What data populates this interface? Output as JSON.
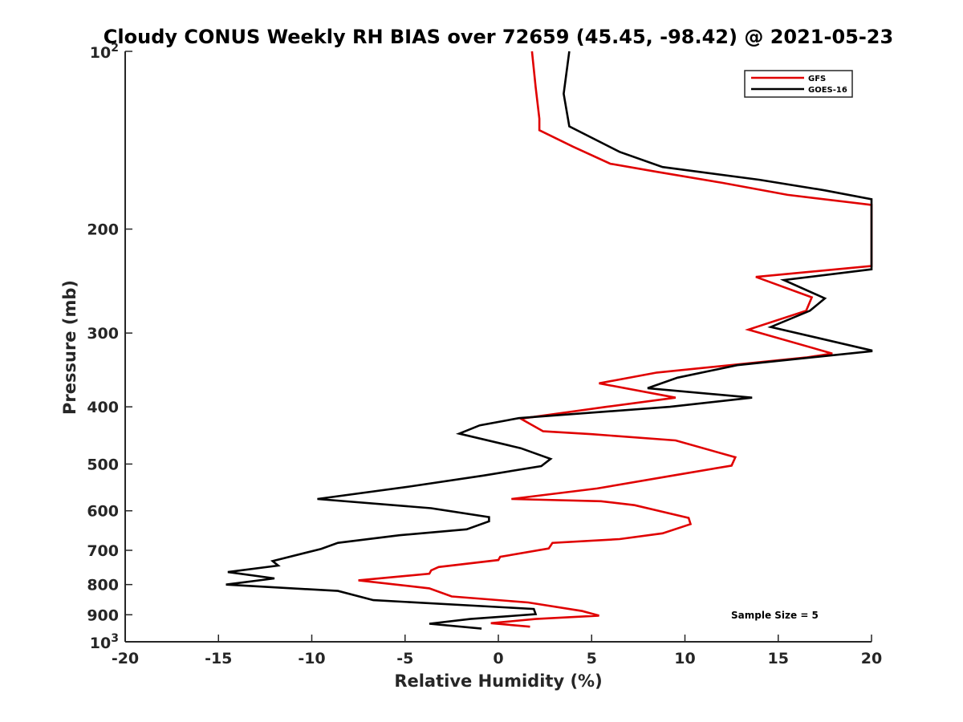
{
  "chart_data": {
    "type": "line",
    "title": "Cloudy CONUS Weekly RH BIAS over 72659 (45.45, -98.42) @ 2021-05-23",
    "xlabel": "Relative Humidity (%)",
    "ylabel": "Pressure (mb)",
    "xlim": [
      -20,
      20
    ],
    "ylim": [
      100,
      1000
    ],
    "y_scale": "log",
    "y_reversed": true,
    "x_ticks": [
      "-20",
      "-15",
      "-10",
      "-5",
      "0",
      "5",
      "10",
      "15",
      "20"
    ],
    "x_tick_values": [
      -20,
      -15,
      -10,
      -5,
      0,
      5,
      10,
      15,
      20
    ],
    "y_tick_values": [
      100,
      200,
      300,
      400,
      500,
      600,
      700,
      800,
      900,
      1000
    ],
    "y_ticks_plain": [
      "200",
      "300",
      "400",
      "500",
      "600",
      "700",
      "800",
      "900"
    ],
    "y_ticks_power": [
      {
        "value": 100,
        "base": "10",
        "exp": "2"
      },
      {
        "value": 1000,
        "base": "10",
        "exp": "3"
      }
    ],
    "grid": false,
    "legend_position": "top-right",
    "annotation": "Sample Size = 5",
    "series": [
      {
        "name": "GFS",
        "color": "#e00000",
        "points": [
          [
            1.8,
            100
          ],
          [
            2.0,
            115
          ],
          [
            2.2,
            130
          ],
          [
            2.2,
            136
          ],
          [
            4.0,
            145
          ],
          [
            6.0,
            155
          ],
          [
            8.5,
            160
          ],
          [
            12.0,
            167
          ],
          [
            15.5,
            175
          ],
          [
            20.0,
            182
          ],
          [
            20.0,
            183
          ],
          [
            20.0,
            231
          ],
          [
            13.8,
            241
          ],
          [
            16.8,
            261
          ],
          [
            16.5,
            275
          ],
          [
            13.4,
            296
          ],
          [
            17.9,
            325
          ],
          [
            16.5,
            330
          ],
          [
            8.5,
            350
          ],
          [
            5.4,
            365
          ],
          [
            9.5,
            386
          ],
          [
            5.8,
            400
          ],
          [
            1.2,
            419
          ],
          [
            2.4,
            440
          ],
          [
            5.0,
            445
          ],
          [
            9.5,
            456
          ],
          [
            12.7,
            487
          ],
          [
            12.5,
            503
          ],
          [
            9.5,
            522
          ],
          [
            5.3,
            550
          ],
          [
            0.7,
            573
          ],
          [
            5.5,
            578
          ],
          [
            7.3,
            587
          ],
          [
            10.2,
            617
          ],
          [
            10.3,
            632
          ],
          [
            8.8,
            655
          ],
          [
            6.5,
            670
          ],
          [
            2.9,
            680
          ],
          [
            2.7,
            695
          ],
          [
            0.1,
            718
          ],
          [
            0.0,
            727
          ],
          [
            -3.2,
            747
          ],
          [
            -3.6,
            757
          ],
          [
            -3.7,
            767
          ],
          [
            -7.5,
            787
          ],
          [
            -3.7,
            812
          ],
          [
            -2.5,
            838
          ],
          [
            1.6,
            858
          ],
          [
            4.5,
            887
          ],
          [
            5.4,
            903
          ],
          [
            2.0,
            915
          ],
          [
            -0.4,
            930
          ],
          [
            1.7,
            943
          ]
        ]
      },
      {
        "name": "GOES-16",
        "color": "#000000",
        "points": [
          [
            3.8,
            100
          ],
          [
            3.5,
            118
          ],
          [
            3.8,
            134
          ],
          [
            6.5,
            148
          ],
          [
            8.8,
            157
          ],
          [
            14.0,
            165
          ],
          [
            17.5,
            172
          ],
          [
            20.0,
            178
          ],
          [
            20.0,
            179
          ],
          [
            20.0,
            234
          ],
          [
            15.3,
            244
          ],
          [
            17.5,
            262
          ],
          [
            16.7,
            275
          ],
          [
            14.6,
            293
          ],
          [
            20.0,
            321
          ],
          [
            20.0,
            322
          ],
          [
            12.8,
            340
          ],
          [
            9.6,
            357
          ],
          [
            8.0,
            372
          ],
          [
            13.6,
            386
          ],
          [
            9.2,
            400
          ],
          [
            1.1,
            418
          ],
          [
            -1.0,
            430
          ],
          [
            -2.1,
            444
          ],
          [
            1.2,
            470
          ],
          [
            2.8,
            490
          ],
          [
            2.3,
            504
          ],
          [
            -0.8,
            523
          ],
          [
            -4.8,
            546
          ],
          [
            -9.7,
            573
          ],
          [
            -3.6,
            594
          ],
          [
            -0.5,
            615
          ],
          [
            -0.5,
            625
          ],
          [
            -1.7,
            645
          ],
          [
            -5.3,
            660
          ],
          [
            -8.6,
            680
          ],
          [
            -9.5,
            696
          ],
          [
            -12.1,
            730
          ],
          [
            -11.8,
            743
          ],
          [
            -14.5,
            762
          ],
          [
            -12.0,
            781
          ],
          [
            -14.6,
            800
          ],
          [
            -8.6,
            820
          ],
          [
            -6.7,
            850
          ],
          [
            1.9,
            880
          ],
          [
            2.0,
            898
          ],
          [
            -1.5,
            915
          ],
          [
            -3.7,
            932
          ],
          [
            -0.9,
            950
          ]
        ]
      }
    ]
  }
}
